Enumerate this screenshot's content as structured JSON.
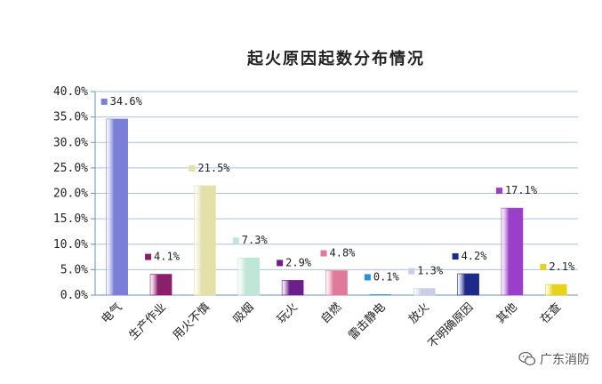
{
  "chart_data": {
    "type": "bar",
    "title": "起火原因起数分布情况",
    "categories": [
      "电气",
      "生产作业",
      "用火不慎",
      "吸烟",
      "玩火",
      "自燃",
      "雷击静电",
      "放火",
      "不明确原因",
      "其他",
      "在查"
    ],
    "values": [
      34.6,
      4.1,
      21.5,
      7.3,
      2.9,
      4.8,
      0.1,
      1.3,
      4.2,
      17.1,
      2.1
    ],
    "data_labels": [
      "34.6%",
      "4.1%",
      "21.5%",
      "7.3%",
      "2.9%",
      "4.8%",
      "0.1%",
      "1.3%",
      "4.2%",
      "17.1%",
      "2.1%"
    ],
    "ytick_labels": [
      "0.0%",
      "5.0%",
      "10.0%",
      "15.0%",
      "20.0%",
      "25.0%",
      "30.0%",
      "35.0%",
      "40.0%"
    ],
    "ylim": [
      0,
      40
    ],
    "grid": true,
    "legend": "none",
    "colors": [
      "#7b7fd8",
      "#8a1f6a",
      "#e3e0a8",
      "#bfe6d6",
      "#6a1f8a",
      "#e07a9a",
      "#2a8fd8",
      "#c9cde8",
      "#1e2a8a",
      "#9b3fc8",
      "#e8d21a"
    ]
  },
  "watermark": {
    "text": "广东消防",
    "icon": "wechat-icon"
  }
}
